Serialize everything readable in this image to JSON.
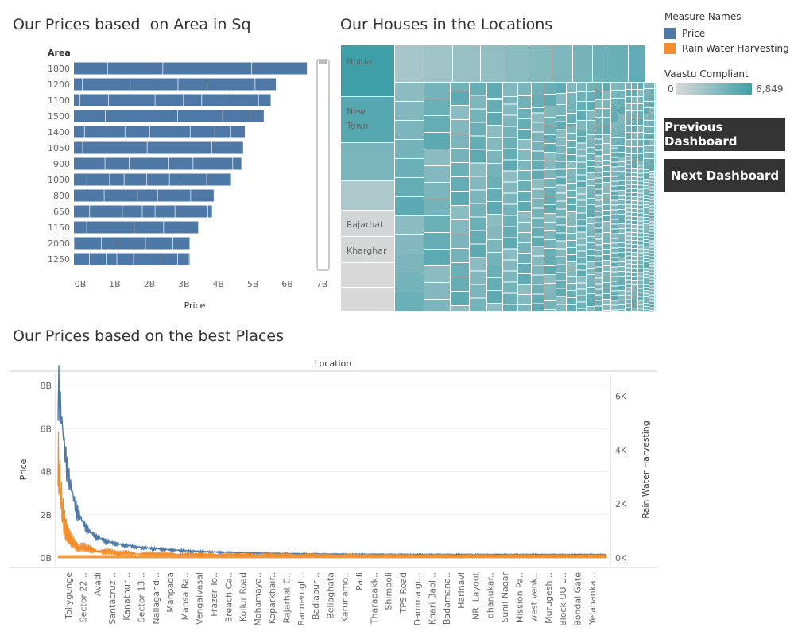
{
  "titles": {
    "area_chart": "Our Prices based  on Area in Sq",
    "treemap": "Our Houses in the Locations",
    "line_chart": "Our Prices based on the best Places"
  },
  "legend": {
    "header": "Measure Names",
    "items": [
      {
        "label": "Price",
        "color": "#4e79a7"
      },
      {
        "label": "Rain Water Harvesting",
        "color": "#f28e2b"
      }
    ]
  },
  "vaastu": {
    "header": "Vaastu Compliant",
    "min": "0",
    "max": "6,849"
  },
  "buttons": {
    "previous": "Previous Dashboard",
    "next": "Next Dashboard"
  },
  "chart_data": [
    {
      "type": "bar",
      "orientation": "horizontal",
      "title": "Our Prices based  on Area in Sq",
      "ylabel": "Area",
      "xlabel": "Price",
      "categories": [
        "1800",
        "1200",
        "1100",
        "1500",
        "1400",
        "1050",
        "900",
        "1000",
        "800",
        "650",
        "1150",
        "2000",
        "1250"
      ],
      "values": [
        6.75,
        5.85,
        5.7,
        5.5,
        4.95,
        4.9,
        4.85,
        4.55,
        4.05,
        4.0,
        3.6,
        3.35,
        3.35
      ],
      "unit": "B",
      "xlim": [
        0,
        7
      ],
      "xticks": [
        "0B",
        "1B",
        "2B",
        "3B",
        "4B",
        "5B",
        "6B",
        "7B"
      ],
      "color": "#4e79a7"
    },
    {
      "type": "treemap",
      "title": "Our Houses in the Locations",
      "labels": [
        "Noida",
        "New Town",
        "Rajarhat",
        "Kharghar"
      ],
      "color_scale": {
        "min": 0,
        "max": 6849,
        "low": "#d8d8d8",
        "high": "#3e9fa9"
      }
    },
    {
      "type": "line",
      "title": "Our Prices based on the best Places",
      "xlabel": "Location",
      "ylabel": "Price",
      "y2label": "Rain Water Harvesting",
      "ylim": [
        0,
        8
      ],
      "yticks": [
        "0B",
        "2B",
        "4B",
        "6B",
        "8B"
      ],
      "y2ticks": [
        "0K",
        "2K",
        "4K",
        "6K"
      ],
      "categories": [
        "Tollygunge",
        "Sector 22 ..",
        "Avadi",
        "Santacruz ..",
        "Kanathur ..",
        "Sector 13 ..",
        "Nallagandl..",
        "Manpada",
        "Mansa Ra..",
        "Vengaivasal",
        "Frazer To..",
        "Breach Ca..",
        "Kollur Road",
        "Mahamaya..",
        "Koparkhair..",
        "Rajarhat C..",
        "Bannerugh..",
        "Badlapur ..",
        "Beliaghata",
        "Karunamo..",
        "Padi",
        "Tharapakk..",
        "Shimpoli",
        "TPS Road",
        "Dammaigu..",
        "Khari Baoli..",
        "Badamana..",
        "Harinavi",
        "NRI Layout",
        "dhanukar..",
        "Sunil Nagar",
        "Mission Pa..",
        "west venk..",
        "Murugesh ..",
        "Block UU U..",
        "Bondal Gate",
        "Yelahanka .."
      ],
      "series": [
        {
          "name": "Price",
          "color": "#4e79a7"
        },
        {
          "name": "Rain Water Harvesting",
          "color": "#f28e2b"
        }
      ]
    }
  ]
}
